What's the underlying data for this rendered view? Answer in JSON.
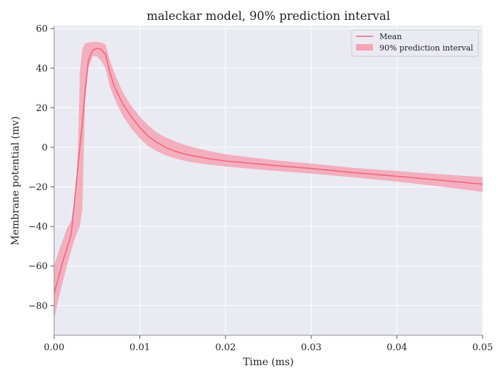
{
  "chart_data": {
    "type": "line",
    "title": "maleckar model, 90% prediction interval",
    "xlabel": "Time (ms)",
    "ylabel": "Membrane potential (mv)",
    "xlim": [
      0.0,
      0.05
    ],
    "ylim": [
      -95,
      61.5
    ],
    "xticks": [
      0.0,
      0.01,
      0.02,
      0.03,
      0.04,
      0.05
    ],
    "xtick_labels": [
      "0.00",
      "0.01",
      "0.02",
      "0.03",
      "0.04",
      "0.05"
    ],
    "yticks": [
      -80,
      -60,
      -40,
      -20,
      0,
      20,
      40,
      60
    ],
    "ytick_labels": [
      "−80",
      "−60",
      "−40",
      "−20",
      "0",
      "20",
      "40",
      "60"
    ],
    "grid": true,
    "legend_position": "top-right",
    "colors": {
      "mean": "#f0677b",
      "band": "#f4a5b5",
      "plot_background": "#eaeaf2",
      "grid": "#ffffff"
    },
    "series": [
      {
        "name": "Mean",
        "kind": "line",
        "x": [
          0.0,
          0.0005,
          0.001,
          0.0015,
          0.002,
          0.0025,
          0.003,
          0.0033,
          0.0036,
          0.004,
          0.0045,
          0.005,
          0.0055,
          0.006,
          0.0065,
          0.007,
          0.008,
          0.009,
          0.01,
          0.011,
          0.012,
          0.013,
          0.014,
          0.015,
          0.016,
          0.018,
          0.02,
          0.025,
          0.03,
          0.035,
          0.04,
          0.045,
          0.05
        ],
        "y": [
          -74,
          -66,
          -58,
          -51,
          -44,
          -22,
          0,
          12,
          28,
          44,
          49,
          50,
          49.5,
          47,
          38,
          31,
          22,
          15.5,
          10,
          5.5,
          2.5,
          0,
          -1.8,
          -3.1,
          -4.1,
          -5.7,
          -6.9,
          -8.9,
          -10.7,
          -12.8,
          -14.6,
          -16.6,
          -18.6
        ]
      },
      {
        "name": "90% prediction interval",
        "kind": "band",
        "x": [
          0.0,
          0.0005,
          0.001,
          0.0015,
          0.002,
          0.0025,
          0.0028,
          0.003,
          0.0033,
          0.0036,
          0.004,
          0.0045,
          0.005,
          0.0055,
          0.006,
          0.0065,
          0.007,
          0.008,
          0.009,
          0.01,
          0.011,
          0.012,
          0.013,
          0.014,
          0.015,
          0.016,
          0.018,
          0.02,
          0.025,
          0.03,
          0.035,
          0.04,
          0.045,
          0.05
        ],
        "lower": [
          -87,
          -77,
          -68,
          -60,
          -52,
          -45,
          -42,
          -40,
          -31,
          22,
          40,
          46,
          46,
          43.5,
          40,
          31,
          25,
          16,
          9.5,
          4.5,
          0.5,
          -2,
          -4,
          -5.4,
          -6.6,
          -7.5,
          -8.7,
          -9.7,
          -11.6,
          -13.3,
          -15.2,
          -17.3,
          -19.8,
          -22.5
        ],
        "upper": [
          -60,
          -53,
          -47,
          -41,
          -37,
          -24,
          0,
          38,
          50,
          52.5,
          53,
          53.3,
          53.3,
          53,
          52,
          44,
          38,
          28,
          21,
          15.5,
          11,
          7.5,
          5,
          3.2,
          1.6,
          0.3,
          -1.8,
          -3.5,
          -6.2,
          -8.2,
          -10.4,
          -12,
          -13.6,
          -15
        ]
      }
    ]
  }
}
